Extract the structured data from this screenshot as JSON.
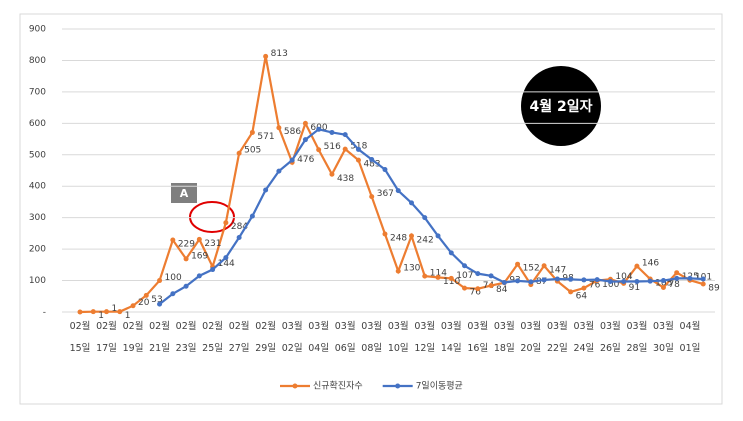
{
  "chart_data": {
    "type": "line",
    "categories": [
      "02월 15일",
      null,
      "02월 17일",
      null,
      "02월 19일",
      null,
      "02월 21일",
      null,
      "02월 23일",
      null,
      "02월 25일",
      null,
      "02월 27일",
      null,
      "02월 29일",
      null,
      "03월 02일",
      null,
      "03월 04일",
      null,
      "03월 06일",
      null,
      "03월 08일",
      null,
      "03월 10일",
      null,
      "03월 12일",
      null,
      "03월 14일",
      null,
      "03월 16일",
      null,
      "03월 18일",
      null,
      "03월 20일",
      null,
      "03월 22일",
      null,
      "03월 24일",
      null,
      "03월 26일",
      null,
      "03월 28일",
      null,
      "03월 30일",
      null,
      "04월 01일",
      null
    ],
    "series": [
      {
        "name": "신규확진자수",
        "color": "#ed7d31",
        "values": [
          0,
          1,
          1,
          1,
          20,
          53,
          100,
          229,
          169,
          231,
          144,
          284,
          505,
          571,
          813,
          586,
          476,
          600,
          516,
          438,
          518,
          483,
          367,
          248,
          130,
          242,
          114,
          110,
          107,
          76,
          74,
          84,
          93,
          152,
          87,
          147,
          98,
          64,
          76,
          100,
          104,
          91,
          146,
          105,
          78,
          125,
          101,
          89
        ],
        "value_labels": [
          null,
          "1",
          "1",
          "1",
          "20",
          "53",
          "100",
          "229",
          "169",
          "231",
          "144",
          "284",
          "505",
          "571",
          "813",
          "586",
          "476",
          "600",
          "516",
          "438",
          "518",
          "483",
          "367",
          "248",
          "130",
          "242",
          "114",
          "110",
          "107",
          "76",
          "74",
          "84",
          "93",
          "152",
          "87",
          "147",
          "98",
          "64",
          "76",
          "100",
          "104",
          "91",
          "146",
          "105",
          "78",
          "125",
          "101",
          "89"
        ]
      },
      {
        "name": "7일이동평균",
        "color": "#4472c4",
        "values": [
          null,
          null,
          null,
          null,
          null,
          null,
          25,
          58,
          82,
          115,
          135,
          173,
          237,
          305,
          388,
          448,
          483,
          548,
          581,
          571,
          564,
          517,
          485,
          453,
          386,
          347,
          300,
          242,
          188,
          147,
          122,
          115,
          94,
          99,
          96,
          102,
          105,
          104,
          102,
          103,
          97,
          97,
          97,
          98,
          100,
          107,
          107,
          105
        ]
      }
    ],
    "ylim": [
      0,
      900
    ],
    "yticks": [
      {
        "value": 0,
        "label": "-"
      },
      100,
      200,
      300,
      400,
      500,
      600,
      700,
      800,
      900
    ],
    "grid": true,
    "legend": "bottom",
    "annotations": [
      "A",
      "4월 2일자"
    ]
  }
}
